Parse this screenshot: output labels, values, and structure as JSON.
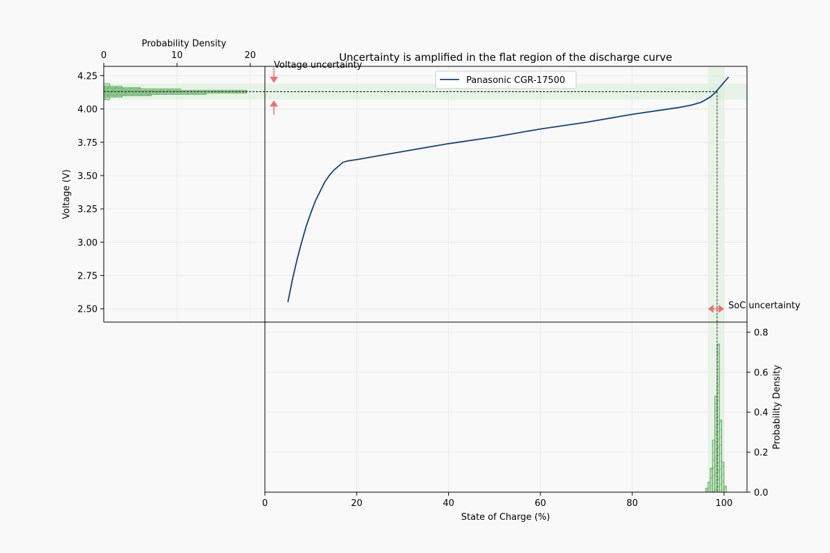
{
  "chart_data": {
    "type": "line",
    "title": "Uncertainty is amplified in the flat region of the discharge curve",
    "xlabel": "State of Charge (%)",
    "ylabel": "Voltage (V)",
    "xlim": [
      0,
      105
    ],
    "ylim": [
      2.4,
      4.32
    ],
    "xticks": [
      0,
      20,
      40,
      60,
      80,
      100
    ],
    "yticks": [
      2.5,
      2.75,
      3.0,
      3.25,
      3.5,
      3.75,
      4.0,
      4.25
    ],
    "grid": true,
    "legend_placement": "top-center",
    "series": [
      {
        "name": "Panasonic CGR-17500",
        "color": "#0d4181",
        "x": [
          5,
          6,
          7,
          8,
          9,
          10,
          11,
          12,
          13,
          14,
          15,
          16,
          17,
          18,
          20,
          30,
          40,
          50,
          60,
          70,
          80,
          90,
          93,
          95,
          96,
          97,
          98,
          99,
          100,
          101
        ],
        "y": [
          2.55,
          2.72,
          2.87,
          3.0,
          3.12,
          3.22,
          3.31,
          3.38,
          3.45,
          3.5,
          3.54,
          3.57,
          3.6,
          3.61,
          3.62,
          3.68,
          3.74,
          3.79,
          3.85,
          3.9,
          3.96,
          4.01,
          4.03,
          4.05,
          4.07,
          4.09,
          4.12,
          4.16,
          4.2,
          4.24
        ]
      }
    ],
    "operating_point": {
      "soc": 98.5,
      "voltage": 4.13
    },
    "voltage_band": [
      4.07,
      4.19
    ],
    "soc_band": [
      96.5,
      100
    ],
    "voltage_histogram": {
      "xlabel": "Probability Density",
      "xlim": [
        0,
        22
      ],
      "xticks": [
        0,
        10,
        20
      ],
      "bins": [
        {
          "v_low": 4.07,
          "v_high": 4.09,
          "density": 0.8
        },
        {
          "v_low": 4.09,
          "v_high": 4.1,
          "density": 2.5
        },
        {
          "v_low": 4.1,
          "v_high": 4.11,
          "density": 6.5
        },
        {
          "v_low": 4.11,
          "v_high": 4.12,
          "density": 14.0
        },
        {
          "v_low": 4.12,
          "v_high": 4.13,
          "density": 19.5
        },
        {
          "v_low": 4.13,
          "v_high": 4.14,
          "density": 19.5
        },
        {
          "v_low": 4.14,
          "v_high": 4.15,
          "density": 10.5
        },
        {
          "v_low": 4.15,
          "v_high": 4.16,
          "density": 5.0
        },
        {
          "v_low": 4.16,
          "v_high": 4.17,
          "density": 2.5
        },
        {
          "v_low": 4.17,
          "v_high": 4.19,
          "density": 0.8
        }
      ]
    },
    "soc_histogram": {
      "ylabel": "Probability Density",
      "ylim": [
        0,
        0.85
      ],
      "yticks": [
        0.0,
        0.2,
        0.4,
        0.6,
        0.8
      ],
      "bins": [
        {
          "s_low": 96.0,
          "s_high": 96.5,
          "density": 0.02
        },
        {
          "s_low": 96.5,
          "s_high": 97.0,
          "density": 0.05
        },
        {
          "s_low": 97.0,
          "s_high": 97.5,
          "density": 0.12
        },
        {
          "s_low": 97.5,
          "s_high": 98.0,
          "density": 0.26
        },
        {
          "s_low": 98.0,
          "s_high": 98.5,
          "density": 0.48
        },
        {
          "s_low": 98.5,
          "s_high": 99.0,
          "density": 0.74
        },
        {
          "s_low": 99.0,
          "s_high": 99.5,
          "density": 0.36
        },
        {
          "s_low": 99.5,
          "s_high": 100.0,
          "density": 0.15
        },
        {
          "s_low": 100.0,
          "s_high": 100.5,
          "density": 0.03
        }
      ]
    },
    "annotations": {
      "voltage_uncertainty": "Voltage uncertainty",
      "soc_uncertainty": "SoC uncertainty"
    }
  }
}
